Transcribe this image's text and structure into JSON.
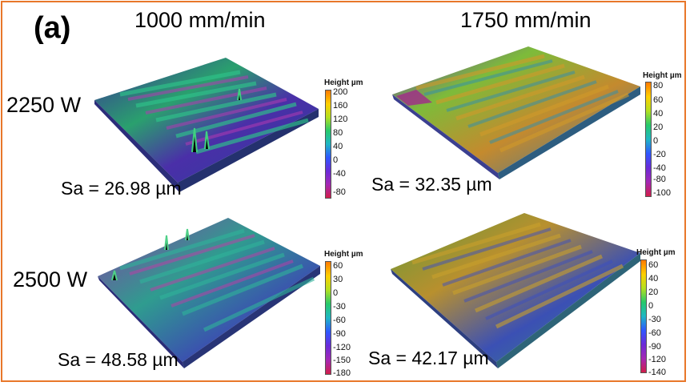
{
  "panel_tag": "(a)",
  "columns": [
    "1000 mm/min",
    "1750 mm/min"
  ],
  "rows": [
    "2250 W",
    "2500 W"
  ],
  "panels": [
    {
      "sa": "Sa = 26.98 µm",
      "colorbar_title": "Height µm",
      "ticks": [
        "200",
        "160",
        "120",
        "80",
        "40",
        "0",
        "-40",
        "-80"
      ]
    },
    {
      "sa": "Sa = 32.35 µm",
      "colorbar_title": "Height µm",
      "ticks": [
        "80",
        "60",
        "40",
        "20",
        "0",
        "-20",
        "-40",
        "-80",
        "-100"
      ]
    },
    {
      "sa": "Sa = 48.58 µm",
      "colorbar_title": "Height µm",
      "ticks": [
        "60",
        "30",
        "0",
        "-30",
        "-60",
        "-90",
        "-120",
        "-150",
        "-180"
      ]
    },
    {
      "sa": "Sa = 42.17 µm",
      "colorbar_title": "Height µm",
      "ticks": [
        "60",
        "40",
        "20",
        "0",
        "-30",
        "-60",
        "-90",
        "-120",
        "-140"
      ]
    }
  ],
  "colors": {
    "border": "#e8772a",
    "colormap_top": "#ff7a00",
    "colormap_mid": "#27c96b",
    "colormap_bottom": "#d11e4a"
  }
}
